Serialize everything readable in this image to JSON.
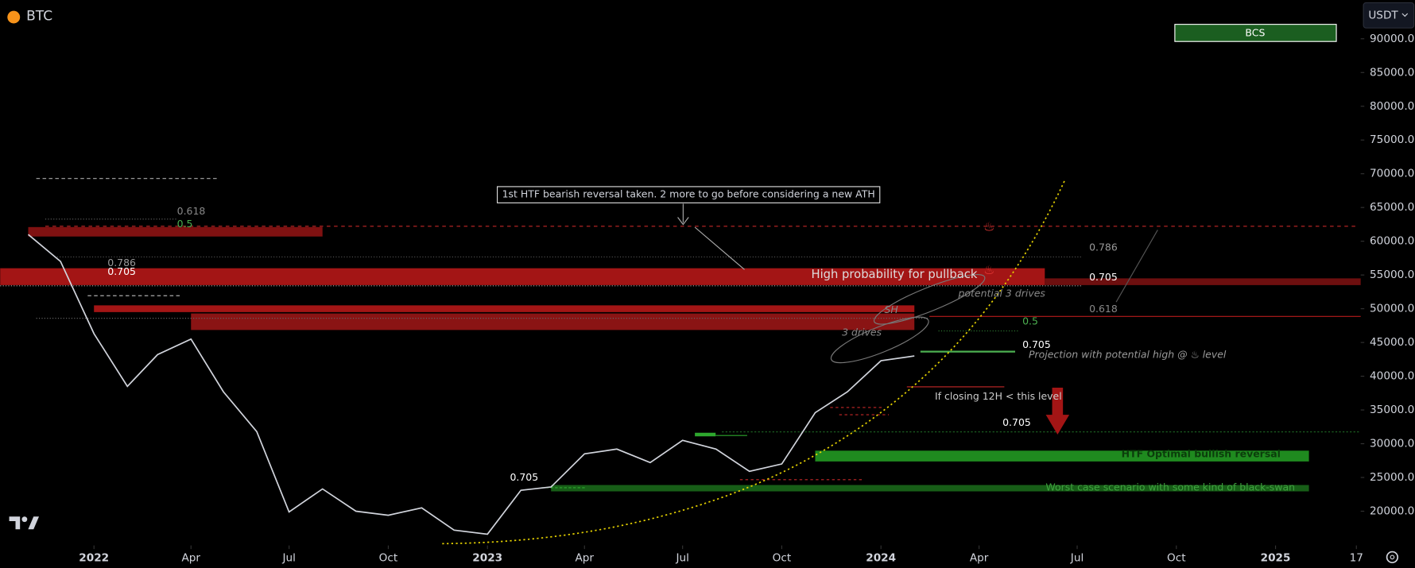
{
  "chart_data": {
    "type": "line",
    "title": "BTC",
    "quote_currency": "USDT",
    "indicator_label": "BCS",
    "color": "#d1d4dc",
    "x": [
      "2021-11",
      "2021-12",
      "2022-01",
      "2022-02",
      "2022-03",
      "2022-04",
      "2022-05",
      "2022-06",
      "2022-07",
      "2022-08",
      "2022-09",
      "2022-10",
      "2022-11",
      "2022-12",
      "2023-01",
      "2023-02",
      "2023-03",
      "2023-04",
      "2023-05",
      "2023-06",
      "2023-07",
      "2023-08",
      "2023-09",
      "2023-10",
      "2023-11",
      "2023-12",
      "2024-01",
      "2024-02"
    ],
    "values": [
      61000,
      57000,
      46300,
      38500,
      43200,
      45500,
      37700,
      31800,
      19900,
      23300,
      20000,
      19400,
      20500,
      17200,
      16600,
      23100,
      23600,
      28500,
      29200,
      27200,
      30500,
      29200,
      25900,
      27000,
      34600,
      37700,
      42300,
      43000
    ],
    "xlim": [
      "2021-10-06",
      "2025-03-21"
    ],
    "xticks": [
      {
        "value": "2022-01",
        "label": "2022"
      },
      {
        "value": "2022-04",
        "label": "Apr"
      },
      {
        "value": "2022-07",
        "label": "Jul"
      },
      {
        "value": "2022-10",
        "label": "Oct"
      },
      {
        "value": "2023-01",
        "label": "2023"
      },
      {
        "value": "2023-04",
        "label": "Apr"
      },
      {
        "value": "2023-07",
        "label": "Jul"
      },
      {
        "value": "2023-10",
        "label": "Oct"
      },
      {
        "value": "2024-01",
        "label": "2024"
      },
      {
        "value": "2024-04",
        "label": "Apr"
      },
      {
        "value": "2024-07",
        "label": "Jul"
      },
      {
        "value": "2024-10",
        "label": "Oct"
      },
      {
        "value": "2025-01",
        "label": "2025"
      },
      {
        "value": "2025-03-17",
        "label": "17"
      }
    ],
    "ylim": [
      14924,
      95744
    ],
    "yticks": [
      {
        "value": 20000,
        "label": "20000.0"
      },
      {
        "value": 25000,
        "label": "25000.0"
      },
      {
        "value": 30000,
        "label": "30000.0"
      },
      {
        "value": 35000,
        "label": "35000.0"
      },
      {
        "value": 40000,
        "label": "40000.0"
      },
      {
        "value": 45000,
        "label": "45000.0"
      },
      {
        "value": 50000,
        "label": "50000.0"
      },
      {
        "value": 55000,
        "label": "55000.0"
      },
      {
        "value": 60000,
        "label": "60000.0"
      },
      {
        "value": 65000,
        "label": "65000.0"
      },
      {
        "value": 70000,
        "label": "70000.0"
      },
      {
        "value": 75000,
        "label": "75000.0"
      },
      {
        "value": 80000,
        "label": "80000.0"
      },
      {
        "value": 85000,
        "label": "85000.0"
      },
      {
        "value": 90000,
        "label": "90000.0"
      }
    ],
    "zones": [
      {
        "low": 60700,
        "high": 62100,
        "start": "2021-11",
        "end": "2022-08",
        "color": "#7f1111"
      },
      {
        "low": 53500,
        "high": 56000,
        "start": "2021-10",
        "end": "2024-06",
        "color": "#a31515"
      },
      {
        "low": 53500,
        "high": 54500,
        "start": "2024-06",
        "end": "2025-04",
        "color": "#6d0f0f"
      },
      {
        "low": 49500,
        "high": 50500,
        "start": "2022-01",
        "end": "2024-02",
        "color": "#a31515"
      },
      {
        "low": 46850,
        "high": 49300,
        "start": "2022-04",
        "end": "2024-02",
        "color": "#8a1414"
      },
      {
        "low": 27370,
        "high": 28970,
        "start": "2023-11",
        "end": "2025-02",
        "color": "#1f8a1f"
      },
      {
        "low": 22940,
        "high": 23880,
        "start": "2023-03",
        "end": "2025-02",
        "color": "#175e17"
      }
    ],
    "annotations": [
      "1st HTF bearish reversal taken. 2 more to go before considering a new ATH",
      "High probability for pullback",
      "potential 3 drives",
      "SH",
      "3 drives",
      "Projection with potential high @ ♨ level",
      "If closing 12H < this level",
      "HTF Optimal bullish reversal",
      "Worst case scenario with some kind of black-swan",
      "0.618",
      "0.5",
      "0.786",
      "0.705",
      "0.705",
      "0.786",
      "0.705",
      "0.618",
      "0.5",
      "0.705",
      "0.705",
      "♨",
      "♨"
    ]
  }
}
